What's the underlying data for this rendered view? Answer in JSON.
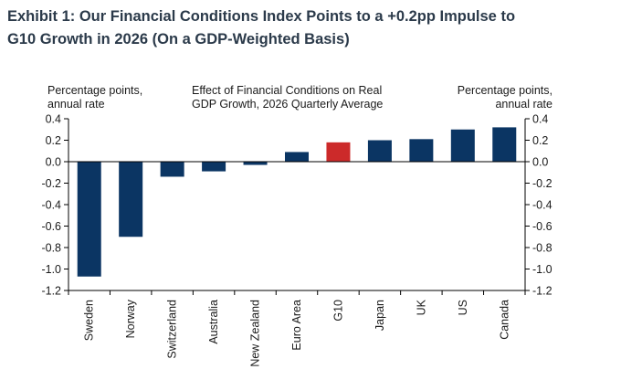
{
  "exhibit": {
    "title_line1": "Exhibit 1: Our Financial Conditions Index Points to a +0.2pp Impulse to",
    "title_line2": "G10 Growth in 2026 (On a GDP-Weighted Basis)"
  },
  "colors": {
    "bar": "#0b3563",
    "highlight": "#cc2a2a",
    "axis": "#000000"
  },
  "chart_data": {
    "type": "bar",
    "title": "Effect of Financial Conditions on Real GDP Growth, 2026 Quarterly Average",
    "title_lines": [
      "Effect of Financial Conditions on Real",
      "GDP Growth, 2026 Quarterly Average"
    ],
    "ylabel_left_lines": [
      "Percentage points,",
      "annual rate"
    ],
    "ylabel_right_lines": [
      "Percentage points,",
      "annual rate"
    ],
    "categories": [
      "Sweden",
      "Norway",
      "Switzerland",
      "Australia",
      "New Zealand",
      "Euro Area",
      "G10",
      "Japan",
      "UK",
      "US",
      "Canada"
    ],
    "values": [
      -1.07,
      -0.7,
      -0.14,
      -0.09,
      -0.03,
      0.09,
      0.18,
      0.2,
      0.21,
      0.3,
      0.32
    ],
    "highlight": "G10",
    "ylim": [
      -1.2,
      0.4
    ],
    "yticks": [
      0.4,
      0.2,
      0.0,
      -0.2,
      -0.4,
      -0.6,
      -0.8,
      -1.0,
      -1.2
    ],
    "ytick_labels": [
      "0.4",
      "0.2",
      "0.0",
      "-0.2",
      "-0.4",
      "-0.6",
      "-0.8",
      "-1.0",
      "-1.2"
    ],
    "grid": false
  }
}
